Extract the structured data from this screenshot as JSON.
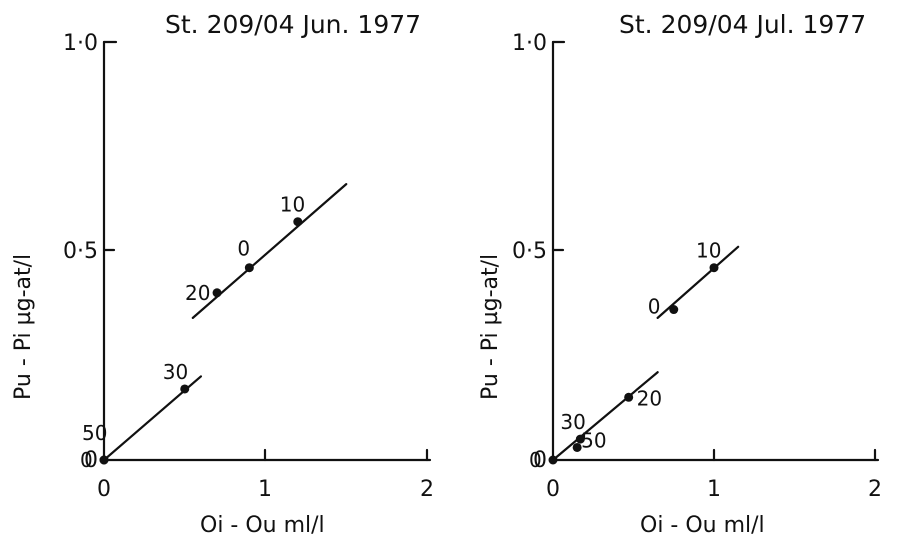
{
  "chart_data": [
    {
      "type": "scatter",
      "title": "St. 209/04  Jun. 1977",
      "xlabel": "Oi - Ou   ml/l",
      "ylabel": "Pu - Pi   µg-at/l",
      "xlim": [
        0,
        2
      ],
      "ylim": [
        0,
        1.0
      ],
      "xticks": [
        "0",
        "1",
        "2"
      ],
      "yticks": [
        "0",
        "0·5",
        "1·0"
      ],
      "points": [
        {
          "label": "0",
          "x": 0.0,
          "y": 0.0
        },
        {
          "label": "50",
          "x": 0.0,
          "y": 0.0
        },
        {
          "label": "30",
          "x": 0.5,
          "y": 0.17
        },
        {
          "label": "20",
          "x": 0.7,
          "y": 0.4
        },
        {
          "label": "0",
          "x": 0.9,
          "y": 0.46
        },
        {
          "label": "10",
          "x": 1.2,
          "y": 0.57
        }
      ],
      "fit_lines": [
        {
          "x": [
            0.0,
            0.6
          ],
          "y": [
            0.0,
            0.2
          ]
        },
        {
          "x": [
            0.55,
            1.5
          ],
          "y": [
            0.34,
            0.66
          ]
        }
      ]
    },
    {
      "type": "scatter",
      "title": "St. 209/04  Jul.  1977",
      "xlabel": "Oi - Ou    ml/l",
      "ylabel": "Pu - Pi   µg-at/l",
      "xlim": [
        0,
        2
      ],
      "ylim": [
        0,
        1.0
      ],
      "xticks": [
        "0",
        "1",
        "2"
      ],
      "yticks": [
        "0",
        "0·5",
        "1·0"
      ],
      "points": [
        {
          "label": "0",
          "x": 0.0,
          "y": 0.0
        },
        {
          "label": "50",
          "x": 0.15,
          "y": 0.03
        },
        {
          "label": "30",
          "x": 0.17,
          "y": 0.05
        },
        {
          "label": "20",
          "x": 0.47,
          "y": 0.15
        },
        {
          "label": "0",
          "x": 0.75,
          "y": 0.36
        },
        {
          "label": "10",
          "x": 1.0,
          "y": 0.46
        }
      ],
      "fit_lines": [
        {
          "x": [
            0.0,
            0.65
          ],
          "y": [
            0.0,
            0.21
          ]
        },
        {
          "x": [
            0.65,
            1.15
          ],
          "y": [
            0.34,
            0.51
          ]
        }
      ]
    }
  ]
}
